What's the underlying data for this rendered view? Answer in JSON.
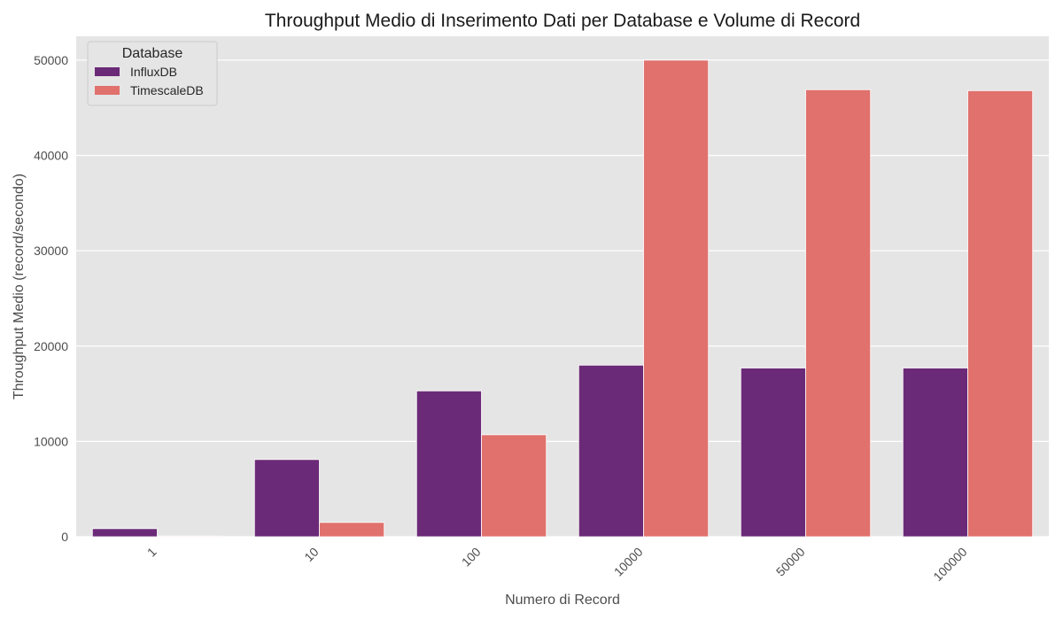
{
  "chart_data": {
    "type": "bar",
    "title": "Throughput Medio di Inserimento Dati per Database e Volume di Record",
    "xlabel": "Numero di Record",
    "ylabel": "Throughput Medio (record/secondo)",
    "categories": [
      "1",
      "10",
      "100",
      "10000",
      "50000",
      "100000"
    ],
    "series": [
      {
        "name": "InfluxDB",
        "color": "#6b2a77",
        "values": [
          850,
          8100,
          15300,
          18000,
          17700,
          17700
        ]
      },
      {
        "name": "TimescaleDB",
        "color": "#e0716d",
        "values": [
          80,
          1500,
          10700,
          50000,
          46900,
          46800
        ]
      }
    ],
    "ylim": [
      0,
      52500
    ],
    "yticks": [
      0,
      10000,
      20000,
      30000,
      40000,
      50000
    ],
    "grid": true,
    "legend": {
      "title": "Database",
      "placement": "top-left"
    },
    "colors": {
      "plot_background": "#e5e5e5",
      "grid": "#ffffff"
    }
  }
}
